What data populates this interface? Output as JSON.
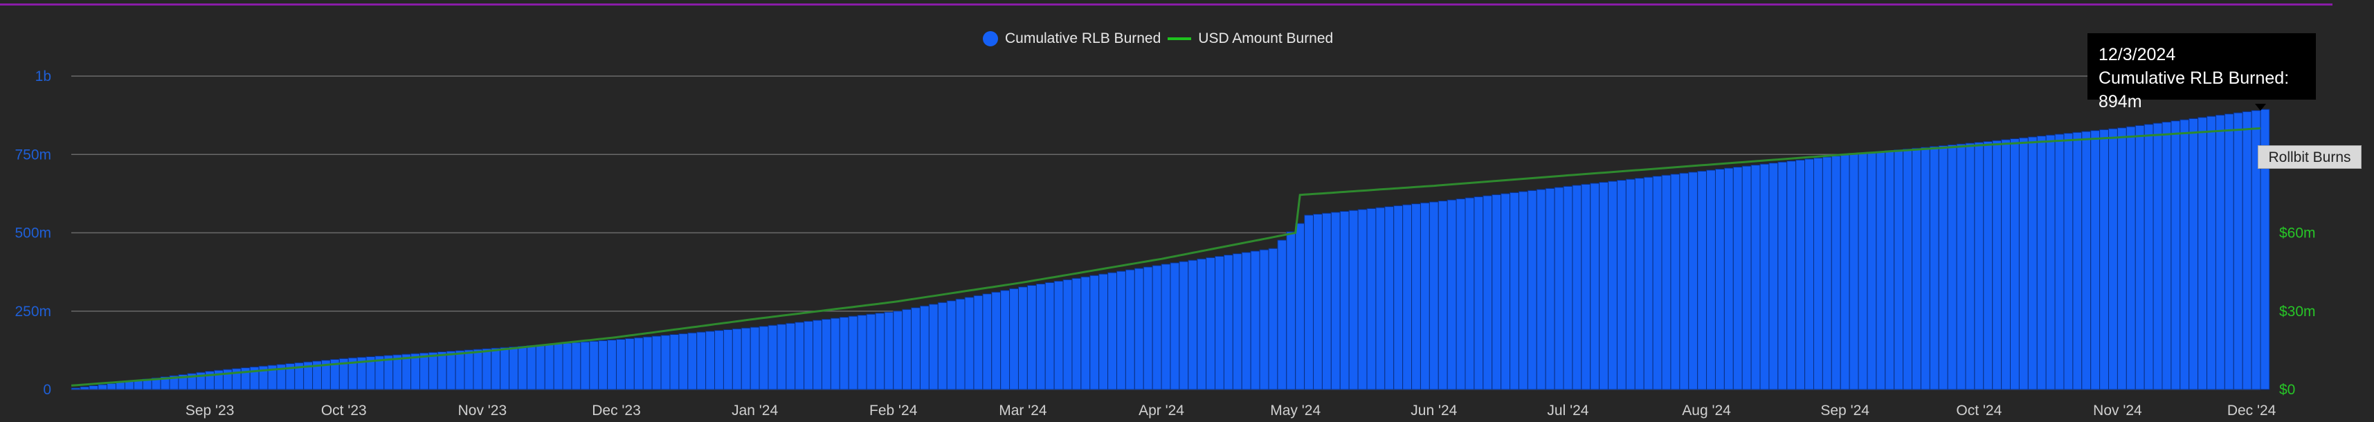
{
  "colors": {
    "background": "#262626",
    "top_rule": "#8a1ca8",
    "bar": "#1560f5",
    "bar_edge": "#0b2f80",
    "usd_line": "#2e8a2e",
    "grid": "#6a6a6a",
    "left_axis_text": "#1f5fd6",
    "right_axis_text": "#27c427",
    "x_axis_text": "#d0d0d0"
  },
  "legend": {
    "items": [
      {
        "label": "Cumulative RLB Burned",
        "icon": "circle-marker"
      },
      {
        "label": "USD Amount Burned",
        "icon": "line-marker"
      }
    ]
  },
  "tooltip": {
    "date": "12/3/2024",
    "text": "Cumulative RLB Burned: 894m"
  },
  "series_tag": "Rollbit Burns",
  "chart_data": {
    "type": "bar",
    "x_type": "date",
    "x_range": [
      "2023-08-01",
      "2024-12-03"
    ],
    "x_ticks": [
      "Sep '23",
      "Oct '23",
      "Nov '23",
      "Dec '23",
      "Jan '24",
      "Feb '24",
      "Mar '24",
      "Apr '24",
      "May '24",
      "Jun '24",
      "Jul '24",
      "Aug '24",
      "Sep '24",
      "Oct '24",
      "Nov '24",
      "Dec '24"
    ],
    "x_tick_dates": [
      "2023-09-01",
      "2023-10-01",
      "2023-11-01",
      "2023-12-01",
      "2024-01-01",
      "2024-02-01",
      "2024-03-01",
      "2024-04-01",
      "2024-05-01",
      "2024-06-01",
      "2024-07-01",
      "2024-08-01",
      "2024-09-01",
      "2024-10-01",
      "2024-11-01",
      "2024-12-01"
    ],
    "y_left": {
      "ylim": [
        0,
        1000
      ],
      "ticks": [
        0,
        250,
        500,
        750,
        1000
      ],
      "tick_labels": [
        "0",
        "250m",
        "500m",
        "750m",
        "1b"
      ]
    },
    "y_right": {
      "ylim": [
        0,
        120
      ],
      "ticks": [
        0,
        30,
        60
      ],
      "tick_labels": [
        "$0",
        "$30m",
        "$60m"
      ]
    },
    "grid": true,
    "legend_position": "top-center",
    "series": [
      {
        "name": "Cumulative RLB Burned",
        "type": "bar",
        "axis": "left",
        "points": [
          [
            "2023-08-01",
            5
          ],
          [
            "2023-09-01",
            60
          ],
          [
            "2023-10-01",
            100
          ],
          [
            "2023-11-01",
            130
          ],
          [
            "2023-12-01",
            160
          ],
          [
            "2024-01-01",
            200
          ],
          [
            "2024-02-01",
            250
          ],
          [
            "2024-03-01",
            330
          ],
          [
            "2024-04-01",
            400
          ],
          [
            "2024-04-25",
            450
          ],
          [
            "2024-05-01",
            530
          ],
          [
            "2024-05-02",
            555
          ],
          [
            "2024-06-01",
            600
          ],
          [
            "2024-07-01",
            650
          ],
          [
            "2024-08-01",
            700
          ],
          [
            "2024-09-01",
            750
          ],
          [
            "2024-10-01",
            790
          ],
          [
            "2024-11-01",
            835
          ],
          [
            "2024-12-03",
            894
          ]
        ]
      },
      {
        "name": "USD Amount Burned",
        "type": "line",
        "axis": "right",
        "points": [
          [
            "2023-08-01",
            1.5
          ],
          [
            "2023-09-01",
            5.5
          ],
          [
            "2023-10-01",
            10
          ],
          [
            "2023-11-01",
            14.5
          ],
          [
            "2023-12-01",
            20
          ],
          [
            "2024-01-01",
            27
          ],
          [
            "2024-02-01",
            33.5
          ],
          [
            "2024-03-01",
            41
          ],
          [
            "2024-04-01",
            50
          ],
          [
            "2024-05-01",
            60
          ],
          [
            "2024-05-02",
            74.5
          ],
          [
            "2024-06-01",
            78
          ],
          [
            "2024-07-01",
            82
          ],
          [
            "2024-08-01",
            86
          ],
          [
            "2024-09-01",
            90
          ],
          [
            "2024-10-01",
            93.5
          ],
          [
            "2024-11-01",
            96.5
          ],
          [
            "2024-12-03",
            100
          ]
        ]
      }
    ]
  }
}
